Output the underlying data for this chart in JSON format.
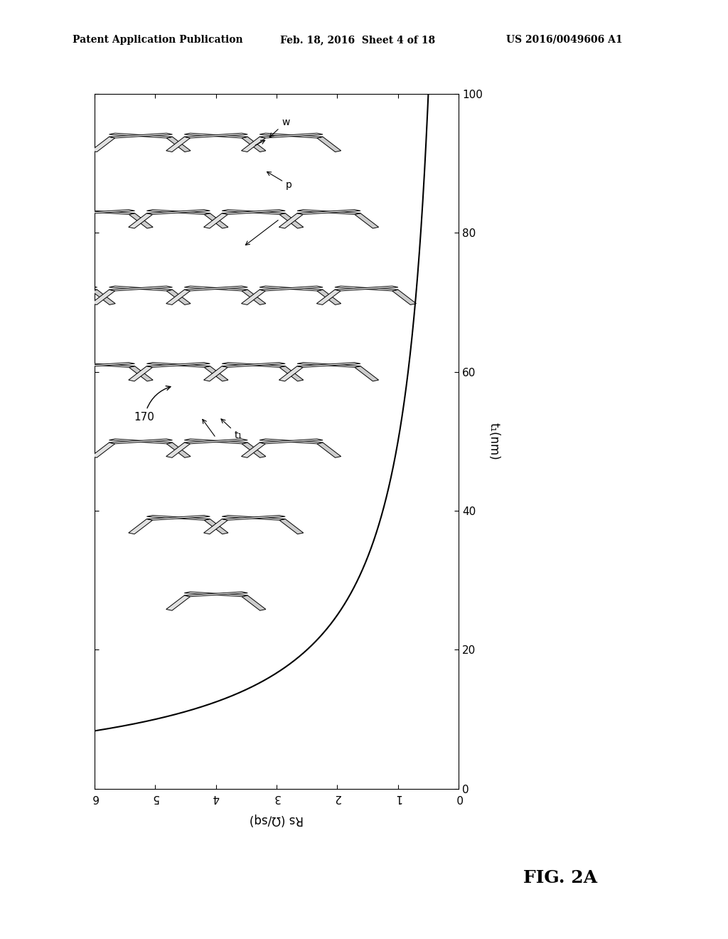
{
  "header_left": "Patent Application Publication",
  "header_mid": "Feb. 18, 2016  Sheet 4 of 18",
  "header_right": "US 2016/0049606 A1",
  "footer_label": "FIG. 2A",
  "ylabel": "t₁(nm)",
  "xlabel": "Rs (Ω/sq)",
  "xlim": [
    0,
    6
  ],
  "ylim": [
    0,
    100
  ],
  "xticks": [
    0,
    1,
    2,
    3,
    4,
    5,
    6
  ],
  "yticks": [
    0,
    20,
    40,
    60,
    80,
    100
  ],
  "annotation_label": "170",
  "wire_label_w": "w",
  "wire_label_p": "p",
  "wire_label_t": "t₁",
  "curve_color": "#000000",
  "background_color": "#ffffff",
  "plot_bg": "#ffffff",
  "border_color": "#000000",
  "curve_constant": 50.0
}
